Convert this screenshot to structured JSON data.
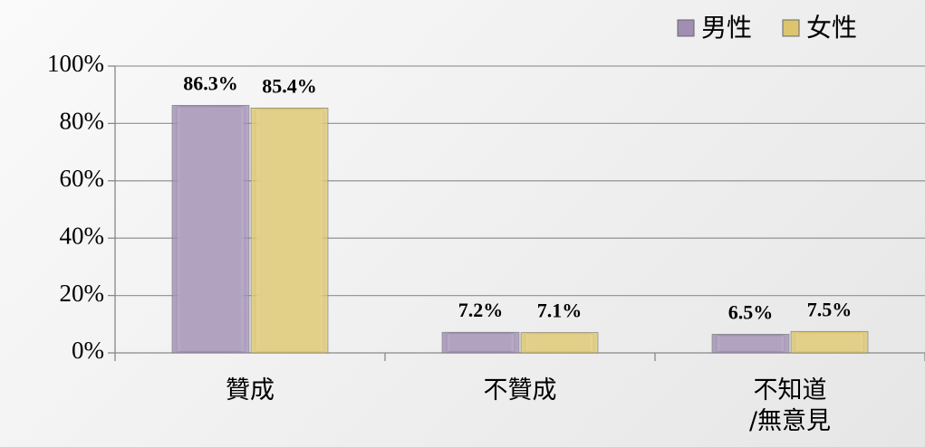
{
  "chart_data": {
    "type": "bar",
    "categories": [
      "贊成",
      "不贊成",
      "不知道\n/無意見"
    ],
    "series": [
      {
        "name": "男性",
        "color": "#a08fb3",
        "values": [
          86.3,
          7.2,
          6.5
        ],
        "value_labels": [
          "86.3%",
          "7.2%",
          "6.5%"
        ]
      },
      {
        "name": "女性",
        "color": "#dcc56e",
        "values": [
          85.4,
          7.1,
          7.5
        ],
        "value_labels": [
          "85.4%",
          "7.1%",
          "7.5%"
        ]
      }
    ],
    "ylim": [
      0,
      100
    ],
    "yticks": [
      {
        "value": 0,
        "label": "0%"
      },
      {
        "value": 20,
        "label": "20%"
      },
      {
        "value": 40,
        "label": "40%"
      },
      {
        "value": 60,
        "label": "60%"
      },
      {
        "value": 80,
        "label": "80%"
      },
      {
        "value": 100,
        "label": "100%"
      }
    ],
    "grid": true,
    "legend": "top-right"
  }
}
